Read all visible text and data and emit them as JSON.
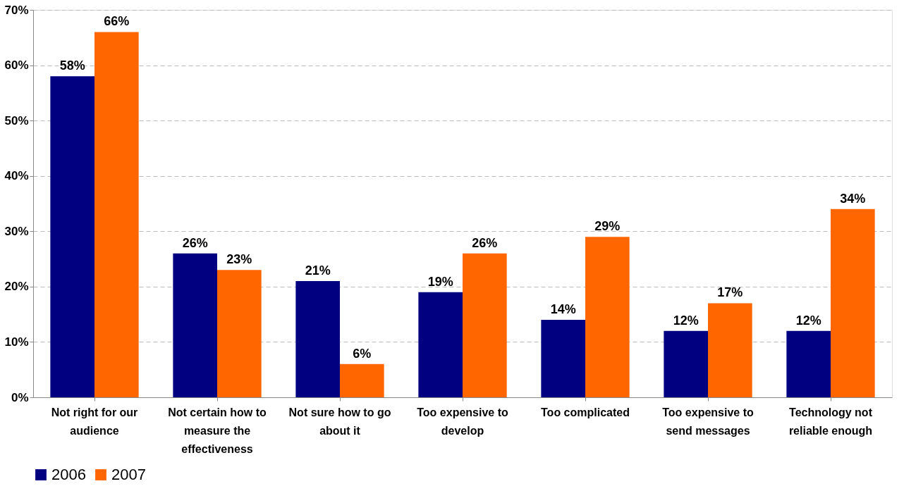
{
  "chart_data": {
    "type": "bar",
    "categories": [
      "Not right for our audience",
      "Not certain how to measure the effectiveness",
      "Not sure how to go about it",
      "Too expensive to develop",
      "Too complicated",
      "Too expensive to send messages",
      "Technology not reliable enough"
    ],
    "series": [
      {
        "name": "2006",
        "color": "#000080",
        "values": [
          58,
          26,
          21,
          19,
          14,
          12,
          12
        ],
        "value_labels": [
          "58%",
          "26%",
          "21%",
          "19%",
          "14%",
          "12%",
          "12%"
        ]
      },
      {
        "name": "2007",
        "color": "#ff6600",
        "values": [
          66,
          23,
          6,
          26,
          29,
          17,
          34
        ],
        "value_labels": [
          "66%",
          "23%",
          "6%",
          "26%",
          "29%",
          "17%",
          "34%"
        ]
      }
    ],
    "ylim": [
      0,
      70
    ],
    "yticks": [
      {
        "value": 0,
        "label": "0%"
      },
      {
        "value": 10,
        "label": "10%"
      },
      {
        "value": 20,
        "label": "20%"
      },
      {
        "value": 30,
        "label": "30%"
      },
      {
        "value": 40,
        "label": "40%"
      },
      {
        "value": 50,
        "label": "50%"
      },
      {
        "value": 60,
        "label": "60%"
      },
      {
        "value": 70,
        "label": "70%"
      }
    ],
    "grid": "y",
    "legend": "bottom"
  }
}
